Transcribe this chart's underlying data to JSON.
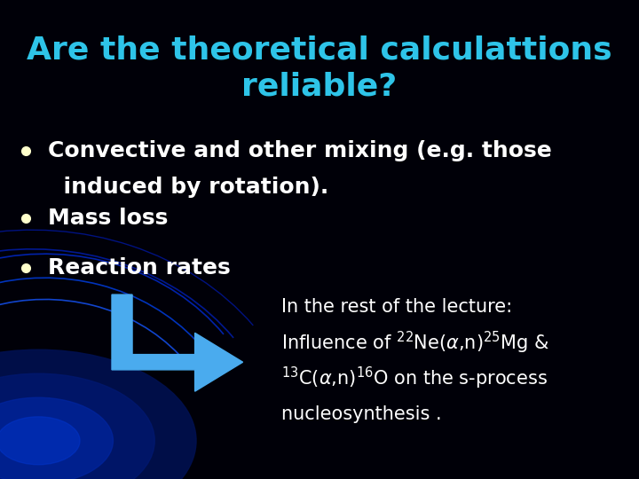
{
  "background_color": "#000008",
  "title_line1": "Are the theoretical calculattions",
  "title_line2": "reliable?",
  "title_color": "#2EC4E8",
  "title_fontsize": 26,
  "bullet_color": "#FFFFFF",
  "bullet_dot_color": "#FFFFCC",
  "bullet_fontsize": 18,
  "bullet1_line1": "Convective and other mixing (e.g. those",
  "bullet1_line2": "  induced by rotation).",
  "bullet2": "Mass loss",
  "bullet3": "Reaction rates",
  "arrow_color": "#4AABEE",
  "note_color": "#FFFFFF",
  "note_fontsize": 15,
  "note_line1": "In the rest of the lecture:",
  "note_line2": "Influence of $^{22}$Ne($\\alpha$,n)$^{25}$Mg &",
  "note_line3": "$^{13}$C($\\alpha$,n)$^{16}$O on the s-process",
  "note_line4": "nucleosynthesis .",
  "arc_color1": "#0000AA",
  "arc_color2": "#0033CC",
  "glow_color": "#001870"
}
